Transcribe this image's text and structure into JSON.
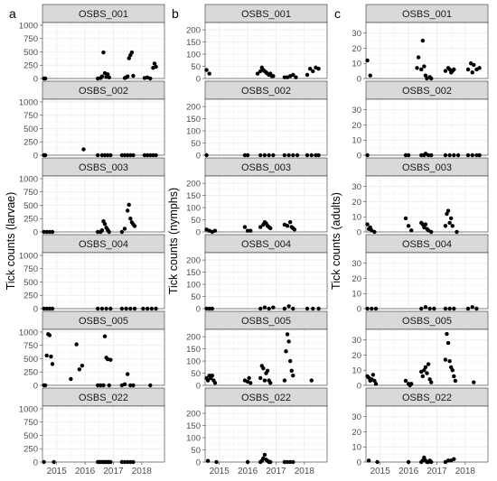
{
  "chart_data": [
    {
      "type": "scatter",
      "panel_letter": "a",
      "ylabel": "Tick counts (larvae)",
      "ylim": [
        0,
        1050
      ],
      "yticks": [
        0,
        250,
        500,
        750,
        1000
      ],
      "xlim": [
        2014.5,
        2018.8
      ],
      "xticks": [
        2015,
        2016,
        2017,
        2018
      ],
      "grid": true,
      "facets": [
        {
          "label": "OSBS_001",
          "x": [
            2014.55,
            2014.6,
            2016.45,
            2016.55,
            2016.6,
            2016.65,
            2016.7,
            2016.75,
            2016.8,
            2016.85,
            2017.4,
            2017.45,
            2017.5,
            2017.55,
            2017.6,
            2017.65,
            2017.7,
            2018.1,
            2018.2,
            2018.3,
            2018.4,
            2018.45,
            2018.5
          ],
          "y": [
            0,
            0,
            0,
            10,
            40,
            490,
            100,
            30,
            80,
            20,
            10,
            20,
            40,
            380,
            440,
            490,
            50,
            10,
            20,
            0,
            200,
            280,
            220
          ]
        },
        {
          "label": "OSBS_002",
          "x": [
            2014.55,
            2014.6,
            2015.95,
            2016.45,
            2016.6,
            2016.7,
            2016.8,
            2016.9,
            2017.3,
            2017.4,
            2017.5,
            2017.6,
            2017.7,
            2018.1,
            2018.2,
            2018.3,
            2018.4,
            2018.5
          ],
          "y": [
            0,
            0,
            110,
            0,
            0,
            0,
            0,
            0,
            0,
            0,
            0,
            0,
            0,
            0,
            0,
            0,
            0,
            0
          ]
        },
        {
          "label": "OSBS_003",
          "x": [
            2014.55,
            2014.65,
            2014.75,
            2014.85,
            2016.45,
            2016.55,
            2016.6,
            2016.65,
            2016.7,
            2016.75,
            2016.8,
            2016.85,
            2017.3,
            2017.4,
            2017.5,
            2017.55,
            2017.6,
            2017.65,
            2017.7,
            2017.75
          ],
          "y": [
            0,
            0,
            0,
            0,
            0,
            0,
            30,
            200,
            150,
            80,
            40,
            0,
            0,
            60,
            400,
            510,
            250,
            180,
            140,
            110
          ]
        },
        {
          "label": "OSBS_004",
          "x": [
            2014.55,
            2014.65,
            2014.75,
            2014.85,
            2016.45,
            2016.6,
            2016.75,
            2016.9,
            2017.3,
            2017.45,
            2017.6,
            2017.75,
            2018.05,
            2018.2,
            2018.35,
            2018.5
          ],
          "y": [
            0,
            0,
            0,
            0,
            0,
            0,
            0,
            0,
            0,
            0,
            0,
            0,
            0,
            0,
            0,
            0
          ]
        },
        {
          "label": "OSBS_005",
          "x": [
            2014.55,
            2014.6,
            2014.65,
            2014.7,
            2014.75,
            2014.8,
            2014.85,
            2015.5,
            2015.7,
            2015.8,
            2015.9,
            2016.45,
            2016.55,
            2016.65,
            2016.7,
            2016.75,
            2016.8,
            2016.85,
            2016.9,
            2017.3,
            2017.4,
            2017.5,
            2017.6,
            2017.7,
            2018.3
          ],
          "y": [
            0,
            0,
            560,
            960,
            940,
            540,
            400,
            120,
            770,
            300,
            370,
            0,
            0,
            0,
            920,
            520,
            490,
            0,
            480,
            0,
            20,
            210,
            0,
            0,
            0
          ]
        },
        {
          "label": "OSBS_022",
          "x": [
            2014.55,
            2014.9,
            2016.45,
            2016.5,
            2016.55,
            2016.6,
            2016.65,
            2016.7,
            2016.75,
            2016.8,
            2016.85,
            2016.9,
            2017.3,
            2017.4,
            2017.5,
            2017.6,
            2017.7
          ],
          "y": [
            0,
            0,
            0,
            0,
            0,
            0,
            0,
            0,
            0,
            0,
            0,
            0,
            0,
            0,
            0,
            0,
            0
          ]
        }
      ]
    },
    {
      "type": "scatter",
      "panel_letter": "b",
      "ylabel": "Tick counts (nymphs)",
      "ylim": [
        0,
        230
      ],
      "yticks": [
        0,
        50,
        100,
        150,
        200
      ],
      "xlim": [
        2014.5,
        2018.8
      ],
      "xticks": [
        2015,
        2016,
        2017,
        2018
      ],
      "grid": true,
      "facets": [
        {
          "label": "OSBS_001",
          "x": [
            2014.55,
            2014.65,
            2016.35,
            2016.45,
            2016.5,
            2016.55,
            2016.6,
            2016.65,
            2016.7,
            2016.75,
            2016.8,
            2016.85,
            2016.9,
            2017.3,
            2017.4,
            2017.5,
            2017.6,
            2017.7,
            2018.1,
            2018.2,
            2018.3,
            2018.4,
            2018.5
          ],
          "y": [
            35,
            20,
            20,
            30,
            45,
            35,
            30,
            25,
            20,
            15,
            20,
            10,
            10,
            5,
            5,
            10,
            15,
            5,
            15,
            40,
            30,
            45,
            40
          ]
        },
        {
          "label": "OSBS_002",
          "x": [
            2014.55,
            2015.9,
            2016.0,
            2016.45,
            2016.6,
            2016.75,
            2016.9,
            2017.3,
            2017.45,
            2017.6,
            2017.75,
            2018.1,
            2018.25,
            2018.4,
            2018.5
          ],
          "y": [
            0,
            0,
            0,
            0,
            0,
            0,
            0,
            0,
            0,
            0,
            0,
            0,
            0,
            0,
            0
          ]
        },
        {
          "label": "OSBS_003",
          "x": [
            2014.55,
            2014.65,
            2014.75,
            2014.85,
            2015.9,
            2016.0,
            2016.1,
            2016.45,
            2016.55,
            2016.6,
            2016.65,
            2016.7,
            2016.75,
            2016.8,
            2017.3,
            2017.4,
            2017.5,
            2017.55,
            2017.6,
            2017.65
          ],
          "y": [
            10,
            5,
            0,
            5,
            20,
            5,
            5,
            20,
            30,
            40,
            35,
            25,
            20,
            15,
            30,
            25,
            40,
            20,
            15,
            10
          ]
        },
        {
          "label": "OSBS_004",
          "x": [
            2014.55,
            2014.65,
            2014.75,
            2016.45,
            2016.6,
            2016.75,
            2016.9,
            2017.3,
            2017.45,
            2017.6,
            2018.1,
            2018.3,
            2018.5
          ],
          "y": [
            0,
            0,
            0,
            0,
            5,
            0,
            5,
            0,
            10,
            0,
            0,
            0,
            0
          ]
        },
        {
          "label": "OSBS_005",
          "x": [
            2014.55,
            2014.6,
            2014.65,
            2014.7,
            2014.75,
            2014.8,
            2014.85,
            2015.9,
            2016.0,
            2016.05,
            2016.1,
            2016.45,
            2016.5,
            2016.55,
            2016.6,
            2016.65,
            2016.7,
            2016.75,
            2016.8,
            2017.3,
            2017.35,
            2017.4,
            2017.45,
            2017.5,
            2017.55,
            2017.6,
            2018.25
          ],
          "y": [
            30,
            20,
            40,
            30,
            40,
            20,
            10,
            20,
            15,
            30,
            10,
            30,
            80,
            70,
            20,
            50,
            60,
            20,
            10,
            20,
            140,
            210,
            180,
            100,
            60,
            40,
            20
          ]
        },
        {
          "label": "OSBS_022",
          "x": [
            2014.6,
            2014.9,
            2016.0,
            2016.45,
            2016.5,
            2016.55,
            2016.6,
            2016.65,
            2016.7,
            2016.75,
            2016.8,
            2017.3,
            2017.4,
            2017.5,
            2017.6
          ],
          "y": [
            5,
            0,
            0,
            0,
            5,
            15,
            30,
            10,
            5,
            0,
            0,
            0,
            0,
            0,
            0
          ]
        }
      ]
    },
    {
      "type": "scatter",
      "panel_letter": "c",
      "ylabel": "Tick counts (adults)",
      "ylim": [
        0,
        37
      ],
      "yticks": [
        0,
        10,
        20,
        30
      ],
      "xlim": [
        2014.5,
        2018.8
      ],
      "xticks": [
        2015,
        2016,
        2017,
        2018
      ],
      "grid": true,
      "facets": [
        {
          "label": "OSBS_001",
          "x": [
            2014.55,
            2014.65,
            2016.3,
            2016.35,
            2016.45,
            2016.5,
            2016.55,
            2016.6,
            2016.65,
            2016.75,
            2016.8,
            2017.3,
            2017.4,
            2017.45,
            2017.5,
            2017.55,
            2017.6,
            2018.1,
            2018.2,
            2018.25,
            2018.3,
            2018.4,
            2018.5
          ],
          "y": [
            12,
            2,
            7,
            14,
            6,
            25,
            8,
            2,
            0,
            1,
            0,
            5,
            7,
            6,
            4,
            5,
            6,
            6,
            10,
            4,
            9,
            6,
            7
          ]
        },
        {
          "label": "OSBS_002",
          "x": [
            2014.55,
            2015.9,
            2016.0,
            2016.45,
            2016.55,
            2016.6,
            2016.7,
            2016.8,
            2017.3,
            2017.45,
            2017.6,
            2017.75,
            2018.1,
            2018.25,
            2018.4,
            2018.5
          ],
          "y": [
            0,
            0,
            0,
            0,
            0,
            1,
            0,
            0,
            0,
            0,
            0,
            0,
            0,
            0,
            0,
            0
          ]
        },
        {
          "label": "OSBS_003",
          "x": [
            2014.55,
            2014.6,
            2014.65,
            2014.7,
            2014.8,
            2015.9,
            2016.0,
            2016.1,
            2016.45,
            2016.5,
            2016.55,
            2016.6,
            2016.65,
            2016.7,
            2016.8,
            2017.3,
            2017.35,
            2017.4,
            2017.45,
            2017.5,
            2017.55,
            2017.7
          ],
          "y": [
            5,
            2,
            3,
            1,
            0,
            9,
            4,
            1,
            6,
            5,
            3,
            5,
            2,
            1,
            0,
            4,
            12,
            14,
            6,
            9,
            4,
            0
          ]
        },
        {
          "label": "OSBS_004",
          "x": [
            2014.55,
            2014.7,
            2014.85,
            2016.45,
            2016.6,
            2016.75,
            2016.9,
            2017.3,
            2017.45,
            2017.6,
            2018.1,
            2018.25,
            2018.4
          ],
          "y": [
            0,
            0,
            0,
            0,
            1,
            0,
            0,
            0,
            0,
            0,
            0,
            1,
            0
          ]
        },
        {
          "label": "OSBS_005",
          "x": [
            2014.55,
            2014.6,
            2014.65,
            2014.7,
            2014.75,
            2014.8,
            2014.85,
            2015.9,
            2016.0,
            2016.05,
            2016.1,
            2016.45,
            2016.5,
            2016.55,
            2016.6,
            2016.65,
            2016.7,
            2016.75,
            2016.8,
            2017.3,
            2017.35,
            2017.4,
            2017.45,
            2017.5,
            2017.55,
            2017.6,
            2017.65,
            2018.3
          ],
          "y": [
            6,
            5,
            3,
            4,
            7,
            3,
            1,
            3,
            1,
            0,
            1,
            9,
            6,
            10,
            12,
            8,
            14,
            4,
            2,
            17,
            34,
            28,
            16,
            12,
            10,
            6,
            3,
            2
          ]
        },
        {
          "label": "OSBS_022",
          "x": [
            2014.6,
            2014.9,
            2016.0,
            2016.45,
            2016.5,
            2016.55,
            2016.6,
            2016.65,
            2016.7,
            2016.75,
            2016.8,
            2017.3,
            2017.4,
            2017.5,
            2017.6
          ],
          "y": [
            1,
            0,
            0,
            0,
            1,
            3,
            1,
            0,
            0,
            1,
            0,
            0,
            1,
            1,
            2
          ]
        }
      ]
    }
  ]
}
